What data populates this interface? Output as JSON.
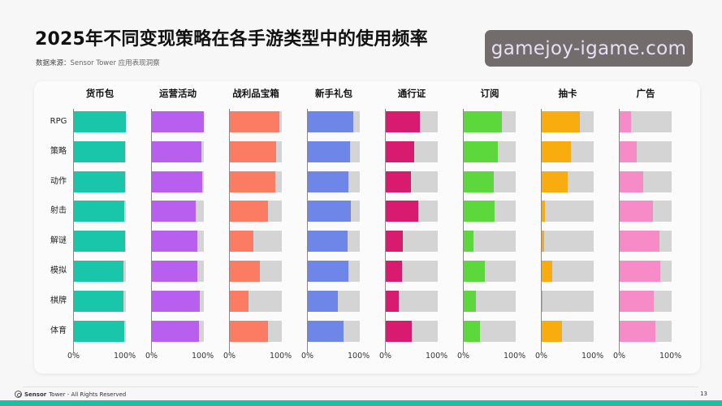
{
  "header": {
    "title": "2025年不同变现策略在各手游类型中的使用频率",
    "source_label": "数据来源：",
    "source_value": "Sensor Tower 应用表现洞察"
  },
  "watermark": {
    "text": "gamejoy-igame.com"
  },
  "footer": {
    "brand": "Sensor",
    "brand_rest": "Tower - All Rights Reserved",
    "page_number": "13",
    "band_color": "#17c1a6"
  },
  "chart_data": {
    "type": "bar",
    "orientation": "horizontal",
    "layout": "small-multiples",
    "title": "2025年不同变现策略在各手游类型中的使用频率",
    "categories": [
      "RPG",
      "策略",
      "动作",
      "射击",
      "解谜",
      "模拟",
      "棋牌",
      "体育"
    ],
    "xlim": [
      0,
      100
    ],
    "tick_labels": [
      "0%",
      "100%"
    ],
    "background_track_color": "#d4d4d4",
    "series": [
      {
        "name": "货币包",
        "color": "#19c6a9",
        "values": [
          100,
          98,
          98,
          97,
          98,
          96,
          96,
          97
        ]
      },
      {
        "name": "运营活动",
        "color": "#b85ff0",
        "values": [
          100,
          96,
          97,
          85,
          88,
          88,
          92,
          91
        ]
      },
      {
        "name": "战利品宝箱",
        "color": "#fb7b63",
        "values": [
          95,
          89,
          88,
          73,
          45,
          58,
          36,
          73
        ]
      },
      {
        "name": "新手礼包",
        "color": "#6d86e8",
        "values": [
          88,
          82,
          78,
          83,
          77,
          78,
          58,
          68
        ]
      },
      {
        "name": "通行证",
        "color": "#d81b6e",
        "values": [
          65,
          55,
          48,
          62,
          33,
          31,
          25,
          50
        ]
      },
      {
        "name": "订阅",
        "color": "#5cd83c",
        "values": [
          74,
          65,
          58,
          59,
          18,
          41,
          24,
          31
        ]
      },
      {
        "name": "抽卡",
        "color": "#f9ac0d",
        "values": [
          73,
          56,
          50,
          6,
          5,
          20,
          2,
          39
        ]
      },
      {
        "name": "广告",
        "color": "#f68bc8",
        "values": [
          22,
          33,
          45,
          64,
          77,
          78,
          66,
          69
        ]
      }
    ]
  }
}
